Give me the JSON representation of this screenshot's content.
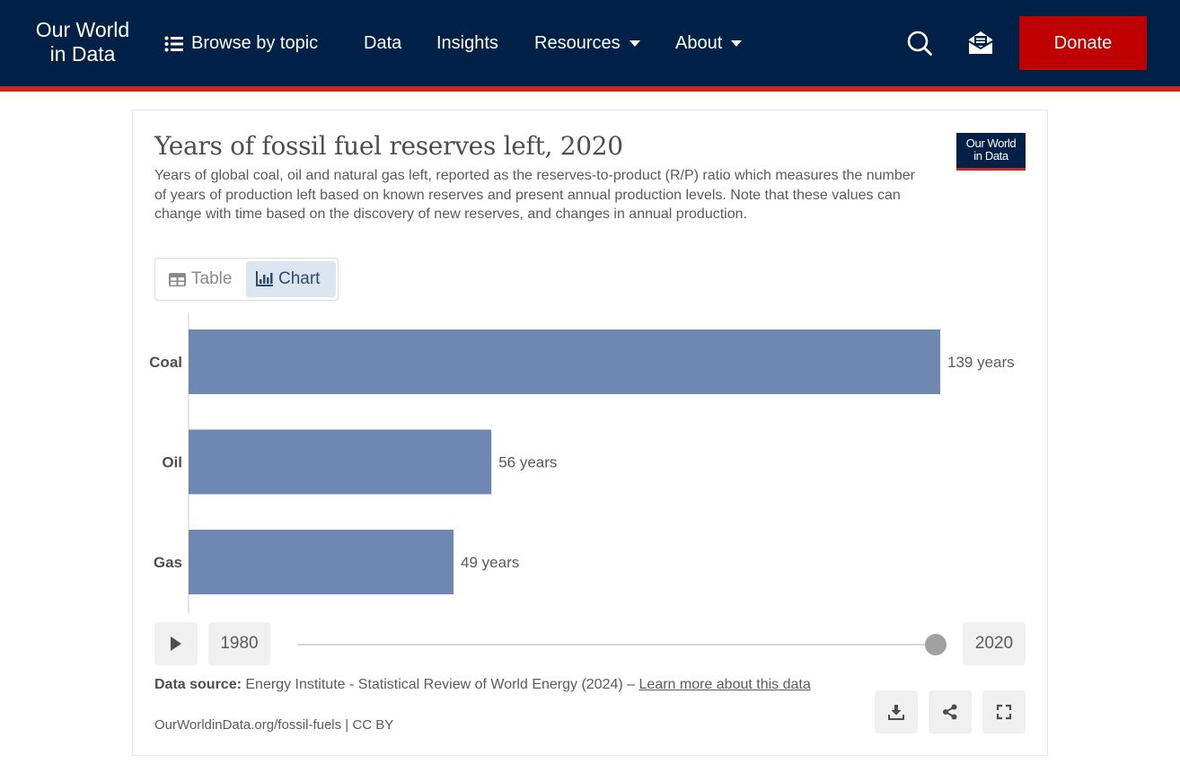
{
  "nav": {
    "logo_line1": "Our World",
    "logo_line2": "in Data",
    "browse": "Browse by topic",
    "data": "Data",
    "insights": "Insights",
    "resources": "Resources",
    "about": "About",
    "donate": "Donate",
    "icons": [
      "list-icon",
      "search-icon",
      "mail-icon",
      "chevron-down-icon"
    ]
  },
  "card": {
    "title": "Years of fossil fuel reserves left, 2020",
    "subtitle": "Years of global coal, oil and natural gas left, reported as the reserves-to-product (R/P) ratio which measures the number of years of production left based on known reserves and present annual production levels. Note that these values can change with time based on the discovery of new reserves, and changes in annual production.",
    "badge_line1": "Our World",
    "badge_line2": "in Data",
    "tab_table": "Table",
    "tab_chart": "Chart"
  },
  "chart_data": {
    "type": "bar",
    "orientation": "horizontal",
    "title": "Years of fossil fuel reserves left, 2020",
    "categories": [
      "Coal",
      "Oil",
      "Gas"
    ],
    "values": [
      139,
      56,
      49
    ],
    "value_labels": [
      "139 years",
      "56 years",
      "49 years"
    ],
    "unit": "years",
    "xlim": [
      0,
      139
    ],
    "bar_color": "#6f88b1",
    "grid": false,
    "legend": "none"
  },
  "timeline": {
    "start_year": "1980",
    "end_year": "2020",
    "selected": 2020
  },
  "footer": {
    "source_label": "Data source:",
    "source_text": "Energy Institute - Statistical Review of World Energy (2024) –",
    "learn_more": "Learn more about this data",
    "citation": "OurWorldinData.org/fossil-fuels | CC BY"
  },
  "colors": {
    "nav_bg": "#002147",
    "accent_red": "#ce261e",
    "donate_bg": "#be0000",
    "bar": "#6f88b1"
  }
}
